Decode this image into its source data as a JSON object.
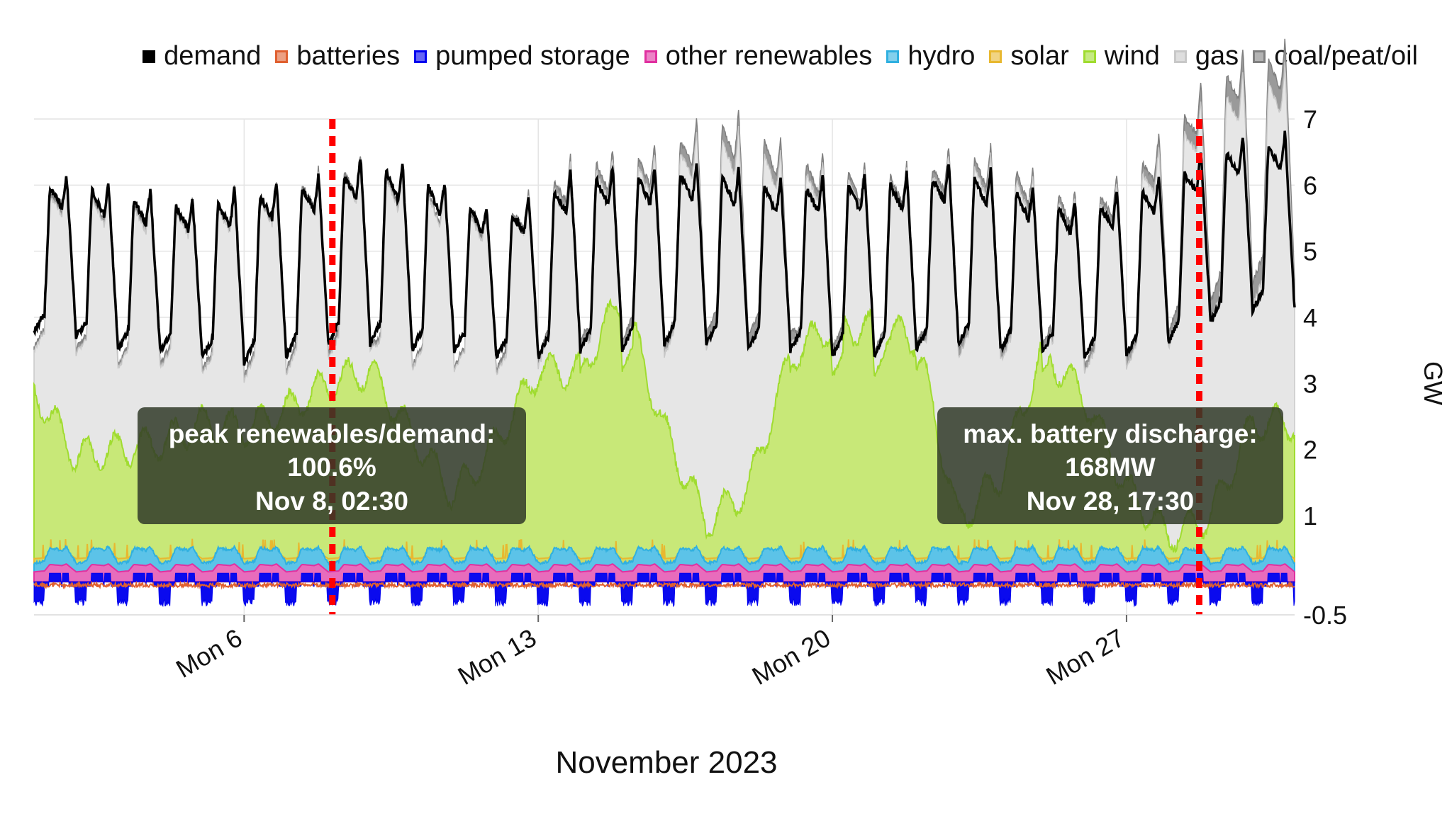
{
  "legend": [
    {
      "label": "demand",
      "color": "#000000"
    },
    {
      "label": "batteries",
      "color": "#e06030"
    },
    {
      "label": "pumped storage",
      "color": "#0000ee"
    },
    {
      "label": "other renewables",
      "color": "#e030a0"
    },
    {
      "label": "hydro",
      "color": "#30b0e0"
    },
    {
      "label": "solar",
      "color": "#e8b830"
    },
    {
      "label": "wind",
      "color": "#a0dc30"
    },
    {
      "label": "gas",
      "color": "#c8c8c8"
    },
    {
      "label": "coal/peat/oil",
      "color": "#808080"
    }
  ],
  "annotations": {
    "left": {
      "line1": "peak renewables/demand:",
      "line2": "100.6%",
      "line3": "Nov 8, 02:30"
    },
    "right": {
      "line1": "max. battery discharge:",
      "line2": "168MW",
      "line3": "Nov 28, 17:30"
    }
  },
  "chart_data": {
    "type": "area",
    "xlabel": "November 2023",
    "ylabel": "GW",
    "xlim": [
      1,
      31
    ],
    "ylim": [
      -0.5,
      7
    ],
    "y_ticks": [
      7,
      6,
      5,
      4,
      3,
      2,
      1,
      -0.5
    ],
    "x_ticks": [
      {
        "day": 6,
        "label": "Mon 6"
      },
      {
        "day": 13,
        "label": "Mon 13"
      },
      {
        "day": 20,
        "label": "Mon 20"
      },
      {
        "day": 27,
        "label": "Mon 27"
      }
    ],
    "markers": [
      {
        "day": 8.1,
        "label": "Nov 8, 02:30"
      },
      {
        "day": 28.73,
        "label": "Nov 28, 17:30"
      }
    ],
    "days": [
      1,
      2,
      3,
      4,
      5,
      6,
      7,
      8,
      9,
      10,
      11,
      12,
      13,
      14,
      15,
      16,
      17,
      18,
      19,
      20,
      21,
      22,
      23,
      24,
      25,
      26,
      27,
      28,
      29,
      30
    ],
    "demand_peak": [
      6.1,
      6.2,
      6.0,
      5.9,
      5.8,
      6.0,
      6.1,
      6.2,
      6.5,
      6.3,
      6.0,
      5.6,
      5.9,
      6.3,
      6.3,
      6.3,
      6.4,
      6.2,
      6.1,
      6.2,
      6.2,
      6.2,
      6.4,
      6.2,
      5.9,
      5.7,
      6.0,
      6.2,
      6.6,
      6.8
    ],
    "demand_min": [
      3.8,
      3.7,
      3.5,
      3.5,
      3.4,
      3.3,
      3.4,
      3.6,
      3.6,
      3.5,
      3.5,
      3.4,
      3.4,
      3.5,
      3.5,
      3.6,
      3.6,
      3.5,
      3.5,
      3.4,
      3.4,
      3.5,
      3.6,
      3.5,
      3.5,
      3.4,
      3.4,
      3.6,
      3.9,
      4.1
    ],
    "series": [
      {
        "name": "wind",
        "values": [
          2.9,
          1.9,
          2.0,
          2.1,
          2.4,
          2.3,
          2.6,
          3.0,
          3.2,
          2.2,
          1.3,
          2.1,
          3.2,
          3.2,
          4.3,
          2.3,
          0.9,
          1.4,
          3.4,
          3.9,
          3.8,
          3.7,
          0.9,
          1.6,
          3.5,
          2.8,
          1.4,
          0.7,
          1.0,
          2.4
        ]
      },
      {
        "name": "gas",
        "values": [
          4.2,
          4.0,
          4.1,
          4.0,
          4.2,
          4.3,
          4.3,
          4.4,
          4.4,
          4.3,
          4.2,
          4.1,
          4.3,
          4.5,
          4.5,
          4.6,
          4.8,
          4.9,
          4.8,
          4.7,
          4.6,
          4.6,
          4.6,
          4.5,
          4.5,
          4.4,
          4.6,
          4.8,
          5.0,
          5.3
        ]
      },
      {
        "name": "coal/peat/oil",
        "values": [
          0.2,
          0.3,
          0.2,
          0.3,
          0.3,
          0.3,
          0.3,
          0.4,
          0.3,
          0.2,
          0.2,
          0.3,
          0.4,
          0.5,
          0.5,
          0.6,
          0.9,
          1.0,
          0.7,
          0.5,
          0.4,
          0.4,
          0.5,
          0.6,
          0.5,
          0.4,
          0.5,
          0.9,
          1.2,
          1.4
        ]
      },
      {
        "name": "hydro",
        "values": [
          0.2,
          0.2,
          0.2,
          0.2,
          0.2,
          0.2,
          0.2,
          0.2,
          0.2,
          0.2,
          0.2,
          0.2,
          0.2,
          0.2,
          0.2,
          0.2,
          0.2,
          0.2,
          0.2,
          0.2,
          0.2,
          0.2,
          0.2,
          0.2,
          0.2,
          0.2,
          0.2,
          0.2,
          0.2,
          0.2
        ]
      },
      {
        "name": "other renewables",
        "values": [
          0.1,
          0.1,
          0.1,
          0.1,
          0.1,
          0.1,
          0.1,
          0.1,
          0.1,
          0.1,
          0.1,
          0.1,
          0.1,
          0.1,
          0.1,
          0.1,
          0.1,
          0.1,
          0.1,
          0.1,
          0.1,
          0.1,
          0.1,
          0.1,
          0.1,
          0.1,
          0.1,
          0.1,
          0.1,
          0.1
        ]
      },
      {
        "name": "pumped storage",
        "values": [
          -0.2,
          -0.2,
          -0.2,
          -0.2,
          -0.2,
          -0.2,
          -0.2,
          -0.2,
          -0.2,
          -0.2,
          -0.2,
          -0.2,
          -0.2,
          -0.2,
          -0.2,
          -0.2,
          -0.2,
          -0.2,
          -0.2,
          -0.2,
          -0.2,
          -0.2,
          -0.2,
          -0.2,
          -0.2,
          -0.2,
          -0.2,
          -0.2,
          -0.2,
          -0.2
        ]
      }
    ]
  }
}
